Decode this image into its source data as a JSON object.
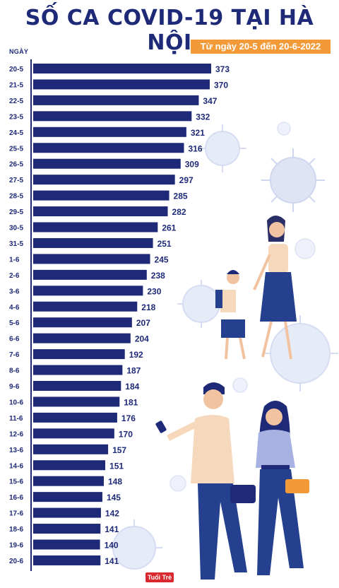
{
  "header": {
    "title": "SỐ CA COVID-19 TẠI HÀ NỘI",
    "date_range": "Từ ngày 20-5 đến 20-6-2022"
  },
  "logo_text": "Tuổi Trẻ",
  "colors": {
    "bar": "#1e2a78",
    "accent": "#f39a38",
    "virus": "#d5dcf2"
  },
  "chart_data": {
    "type": "bar",
    "orientation": "horizontal",
    "title": "SỐ CA COVID-19 TẠI HÀ NỘI",
    "subtitle": "Từ ngày 20-5 đến 20-6-2022",
    "ylabel": "NGÀY",
    "xlabel": "",
    "categories": [
      "20-5",
      "21-5",
      "22-5",
      "23-5",
      "24-5",
      "25-5",
      "26-5",
      "27-5",
      "28-5",
      "29-5",
      "30-5",
      "31-5",
      "1-6",
      "2-6",
      "3-6",
      "4-6",
      "5-6",
      "6-6",
      "7-6",
      "8-6",
      "9-6",
      "10-6",
      "11-6",
      "12-6",
      "13-6",
      "14-6",
      "15-6",
      "16-6",
      "17-6",
      "18-6",
      "19-6",
      "20-6"
    ],
    "values": [
      373,
      370,
      347,
      332,
      321,
      316,
      309,
      297,
      285,
      282,
      261,
      251,
      245,
      238,
      230,
      218,
      207,
      204,
      192,
      187,
      184,
      181,
      176,
      170,
      157,
      151,
      148,
      145,
      142,
      141,
      140,
      141
    ],
    "xlim": [
      0,
      373
    ],
    "grid": false,
    "data_labels": true
  }
}
